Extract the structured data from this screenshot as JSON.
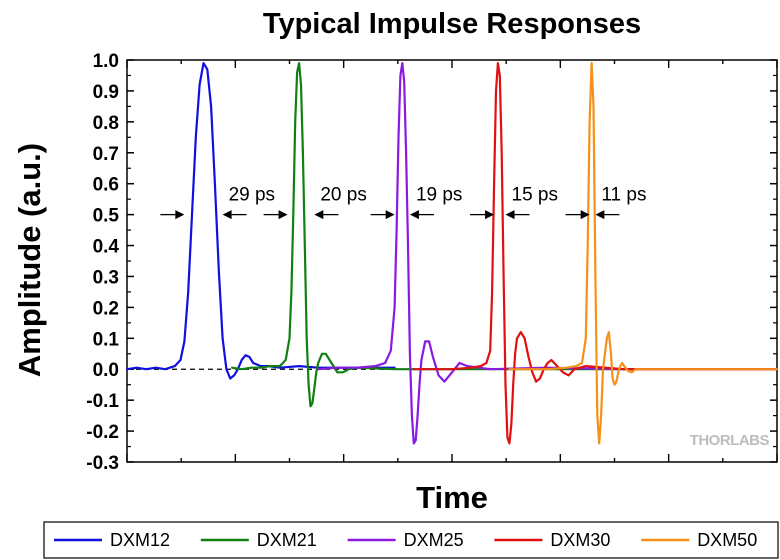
{
  "chart_data": {
    "type": "line",
    "title": "Typical Impulse Responses",
    "xlabel": "Time",
    "ylabel": "Amplitude (a.u.)",
    "ylim": [
      -0.3,
      1.0
    ],
    "yticks": [
      "1.0",
      "0.9",
      "0.8",
      "0.7",
      "0.6",
      "0.5",
      "0.4",
      "0.3",
      "0.2",
      "0.1",
      "0.0",
      "-0.1",
      "-0.2",
      "-0.3"
    ],
    "yticks_values": [
      1.0,
      0.9,
      0.8,
      0.7,
      0.6,
      0.5,
      0.4,
      0.3,
      0.2,
      0.1,
      0.0,
      -0.1,
      -0.2,
      -0.3
    ],
    "x_tick_labels_shown": false,
    "grid": false,
    "zero_reference_line": "dashed",
    "legend_placement": "bottom",
    "series": [
      {
        "name": "DXM12",
        "color": "#1010e0",
        "x": [
          0.0,
          0.05,
          0.1,
          0.15,
          0.2,
          0.25,
          0.28,
          0.3,
          0.32,
          0.34,
          0.36,
          0.38,
          0.4,
          0.42,
          0.44,
          0.46,
          0.48,
          0.5,
          0.52,
          0.54,
          0.56,
          0.58,
          0.6,
          0.62,
          0.64,
          0.66,
          0.7,
          0.74,
          0.8,
          0.9,
          1.0,
          1.2,
          1.4
        ],
        "y": [
          0.0,
          0.005,
          0.0,
          0.005,
          0.0,
          0.01,
          0.03,
          0.09,
          0.25,
          0.5,
          0.75,
          0.92,
          0.99,
          0.97,
          0.85,
          0.6,
          0.32,
          0.1,
          0.0,
          -0.03,
          -0.02,
          0.0,
          0.03,
          0.045,
          0.04,
          0.02,
          0.01,
          0.01,
          0.005,
          0.01,
          0.005,
          0.005,
          0.005
        ]
      },
      {
        "name": "DXM21",
        "color": "#108010",
        "x": [
          0.55,
          0.6,
          0.65,
          0.7,
          0.75,
          0.8,
          0.83,
          0.85,
          0.86,
          0.87,
          0.88,
          0.89,
          0.9,
          0.91,
          0.92,
          0.93,
          0.94,
          0.95,
          0.96,
          0.97,
          0.98,
          0.99,
          1.0,
          1.02,
          1.04,
          1.06,
          1.08,
          1.1,
          1.13,
          1.16,
          1.2,
          1.4,
          1.8,
          2.2,
          2.6,
          3.0,
          3.4
        ],
        "y": [
          0.005,
          0.0,
          0.005,
          0.005,
          0.01,
          0.01,
          0.03,
          0.1,
          0.25,
          0.5,
          0.8,
          0.96,
          0.99,
          0.92,
          0.7,
          0.4,
          0.1,
          -0.05,
          -0.12,
          -0.11,
          -0.06,
          -0.01,
          0.02,
          0.05,
          0.05,
          0.03,
          0.01,
          -0.01,
          -0.01,
          0.0,
          0.005,
          0.0,
          0.0,
          0.0,
          0.0,
          0.0,
          0.0
        ]
      },
      {
        "name": "DXM25",
        "color": "#8a1ae0",
        "x": [
          1.0,
          1.1,
          1.2,
          1.3,
          1.35,
          1.38,
          1.4,
          1.41,
          1.42,
          1.43,
          1.44,
          1.45,
          1.46,
          1.47,
          1.48,
          1.49,
          1.5,
          1.51,
          1.52,
          1.53,
          1.54,
          1.56,
          1.58,
          1.6,
          1.63,
          1.66,
          1.7,
          1.74,
          1.78,
          1.9,
          2.2,
          2.6,
          3.0,
          3.4
        ],
        "y": [
          0.0,
          0.005,
          0.005,
          0.01,
          0.02,
          0.06,
          0.2,
          0.45,
          0.75,
          0.95,
          0.99,
          0.93,
          0.7,
          0.4,
          0.05,
          -0.15,
          -0.24,
          -0.23,
          -0.15,
          -0.05,
          0.03,
          0.09,
          0.09,
          0.04,
          -0.02,
          -0.04,
          -0.01,
          0.02,
          0.01,
          0.0,
          0.005,
          0.0,
          0.0,
          0.0
        ]
      },
      {
        "name": "DXM30",
        "color": "#e01010",
        "x": [
          1.5,
          1.7,
          1.8,
          1.85,
          1.88,
          1.9,
          1.91,
          1.92,
          1.93,
          1.94,
          1.95,
          1.96,
          1.97,
          1.98,
          1.99,
          2.0,
          2.01,
          2.02,
          2.03,
          2.04,
          2.06,
          2.08,
          2.1,
          2.12,
          2.14,
          2.16,
          2.18,
          2.2,
          2.22,
          2.25,
          2.28,
          2.31,
          2.34,
          2.4,
          2.6,
          3.0,
          3.4
        ],
        "y": [
          0.0,
          0.0,
          0.005,
          0.01,
          0.02,
          0.06,
          0.25,
          0.6,
          0.9,
          0.99,
          0.95,
          0.7,
          0.3,
          -0.05,
          -0.22,
          -0.24,
          -0.18,
          -0.05,
          0.05,
          0.1,
          0.12,
          0.1,
          0.04,
          -0.01,
          -0.04,
          -0.03,
          0.0,
          0.02,
          0.03,
          0.01,
          -0.01,
          -0.02,
          0.0,
          0.01,
          0.0,
          0.0,
          0.0
        ]
      },
      {
        "name": "DXM50",
        "color": "#f59018",
        "x": [
          2.0,
          2.2,
          2.3,
          2.35,
          2.38,
          2.4,
          2.41,
          2.42,
          2.43,
          2.44,
          2.45,
          2.46,
          2.47,
          2.48,
          2.49,
          2.5,
          2.51,
          2.52,
          2.53,
          2.54,
          2.55,
          2.56,
          2.57,
          2.58,
          2.59,
          2.6,
          2.62,
          2.64,
          2.66,
          2.7,
          2.8,
          3.0,
          3.2,
          3.4
        ],
        "y": [
          0.0,
          0.0,
          0.005,
          0.01,
          0.02,
          0.1,
          0.4,
          0.8,
          0.99,
          0.85,
          0.3,
          -0.15,
          -0.24,
          -0.15,
          0.0,
          0.05,
          0.1,
          0.12,
          0.06,
          -0.03,
          -0.05,
          -0.04,
          -0.01,
          0.01,
          0.02,
          0.01,
          -0.005,
          -0.01,
          0.0,
          0.0,
          0.0,
          0.0,
          0.0,
          0.0
        ]
      }
    ],
    "annotations": [
      {
        "text": "29 ps",
        "y": 0.5,
        "left_arrow_x": 0.3,
        "right_arrow_x": 0.5
      },
      {
        "text": "20 ps",
        "y": 0.5,
        "left_arrow_x": 0.84,
        "right_arrow_x": 0.98
      },
      {
        "text": "19 ps",
        "y": 0.5,
        "left_arrow_x": 1.4,
        "right_arrow_x": 1.48
      },
      {
        "text": "15 ps",
        "y": 0.5,
        "left_arrow_x": 1.92,
        "right_arrow_x": 1.98
      },
      {
        "text": "11 ps",
        "y": 0.5,
        "left_arrow_x": 2.42,
        "right_arrow_x": 2.45
      }
    ],
    "watermark": "THORLABS"
  }
}
